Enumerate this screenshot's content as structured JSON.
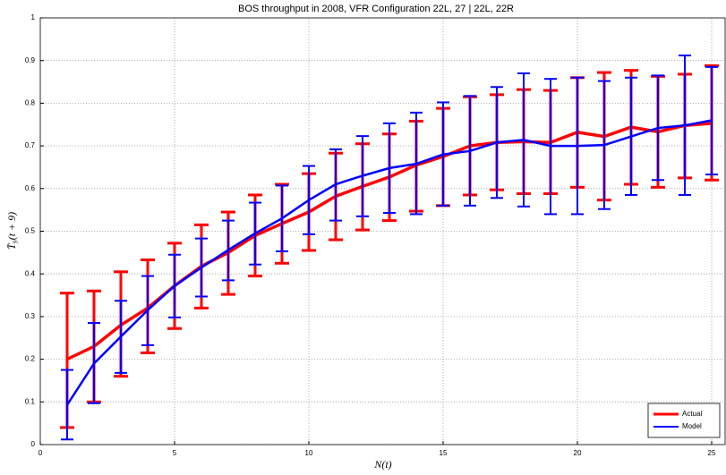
{
  "chart_data": {
    "type": "errorbar_line",
    "title": "BOS throughput in 2008, VFR Configuration 22L, 27 | 22L, 22R",
    "x_label": "N(t)",
    "y_label": "T̄₉(t + 9)",
    "x": [
      1,
      2,
      3,
      4,
      5,
      6,
      7,
      8,
      9,
      10,
      11,
      12,
      13,
      14,
      15,
      16,
      17,
      18,
      19,
      20,
      21,
      22,
      23,
      24,
      25
    ],
    "series": [
      {
        "name": "Actual",
        "color": "#ff0000",
        "values": [
          0.2,
          0.23,
          0.28,
          0.32,
          0.372,
          0.418,
          0.45,
          0.49,
          0.518,
          0.545,
          0.582,
          0.605,
          0.627,
          0.655,
          0.675,
          0.7,
          0.708,
          0.71,
          0.708,
          0.732,
          0.722,
          0.744,
          0.733,
          0.748,
          0.753
        ],
        "lower": [
          0.04,
          0.1,
          0.16,
          0.215,
          0.272,
          0.32,
          0.352,
          0.395,
          0.425,
          0.455,
          0.48,
          0.503,
          0.525,
          0.547,
          0.56,
          0.585,
          0.597,
          0.588,
          0.588,
          0.603,
          0.573,
          0.61,
          0.603,
          0.625,
          0.62
        ],
        "upper": [
          0.355,
          0.36,
          0.405,
          0.433,
          0.472,
          0.515,
          0.545,
          0.585,
          0.61,
          0.635,
          0.683,
          0.705,
          0.728,
          0.758,
          0.788,
          0.815,
          0.82,
          0.832,
          0.83,
          0.86,
          0.872,
          0.877,
          0.863,
          0.868,
          0.888
        ]
      },
      {
        "name": "Model",
        "color": "#0000ff",
        "values": [
          0.093,
          0.19,
          0.253,
          0.315,
          0.372,
          0.415,
          0.456,
          0.495,
          0.53,
          0.573,
          0.61,
          0.63,
          0.648,
          0.658,
          0.68,
          0.688,
          0.708,
          0.714,
          0.7,
          0.7,
          0.702,
          0.722,
          0.742,
          0.748,
          0.76
        ],
        "lower": [
          0.012,
          0.097,
          0.168,
          0.233,
          0.298,
          0.347,
          0.385,
          0.422,
          0.453,
          0.493,
          0.525,
          0.535,
          0.543,
          0.54,
          0.56,
          0.56,
          0.578,
          0.558,
          0.54,
          0.54,
          0.552,
          0.585,
          0.62,
          0.585,
          0.633
        ],
        "upper": [
          0.175,
          0.285,
          0.337,
          0.395,
          0.445,
          0.483,
          0.525,
          0.567,
          0.607,
          0.653,
          0.692,
          0.723,
          0.753,
          0.778,
          0.802,
          0.817,
          0.838,
          0.87,
          0.857,
          0.86,
          0.852,
          0.86,
          0.865,
          0.912,
          0.885
        ]
      }
    ],
    "xlim": [
      0,
      25.5
    ],
    "ylim": [
      0,
      1
    ],
    "xticks": [
      0,
      5,
      10,
      15,
      20,
      25
    ],
    "yticks": [
      0,
      0.1,
      0.2,
      0.3,
      0.4,
      0.5,
      0.6,
      0.7,
      0.8,
      0.9,
      1
    ],
    "grid": true,
    "legend": "lower-right"
  }
}
